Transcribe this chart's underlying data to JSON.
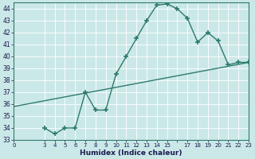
{
  "xlabel": "Humidex (Indice chaleur)",
  "bg_color": "#cbe8e8",
  "grid_color": "#b0d8d0",
  "line_color": "#2e7b6b",
  "xlim": [
    0,
    23
  ],
  "ylim": [
    33,
    44.5
  ],
  "xticks": [
    0,
    3,
    4,
    5,
    6,
    7,
    8,
    9,
    10,
    11,
    12,
    13,
    14,
    15,
    16,
    17,
    18,
    19,
    20,
    21,
    22,
    23
  ],
  "xtick_labels": [
    "0",
    "3",
    "4",
    "5",
    "6",
    "7",
    "8",
    "9",
    "10",
    "11",
    "12",
    "13",
    "14",
    "15",
    "",
    "17",
    "18",
    "19",
    "20",
    "21",
    "22",
    "23"
  ],
  "yticks": [
    33,
    34,
    35,
    36,
    37,
    38,
    39,
    40,
    41,
    42,
    43,
    44
  ],
  "curve_x": [
    3,
    4,
    5,
    6,
    7,
    8,
    9,
    10,
    11,
    12,
    13,
    14,
    15,
    16,
    17,
    18,
    19,
    20,
    21,
    22,
    23
  ],
  "curve_y": [
    34.0,
    33.5,
    34.0,
    34.0,
    37.0,
    35.5,
    35.5,
    38.5,
    40.0,
    41.5,
    43.0,
    44.3,
    44.4,
    44.0,
    43.2,
    41.2,
    42.0,
    41.3,
    39.3,
    39.5,
    39.5
  ],
  "trend_x": [
    0,
    23
  ],
  "trend_y": [
    35.8,
    39.5
  ],
  "markersize": 4,
  "linewidth": 1.0
}
